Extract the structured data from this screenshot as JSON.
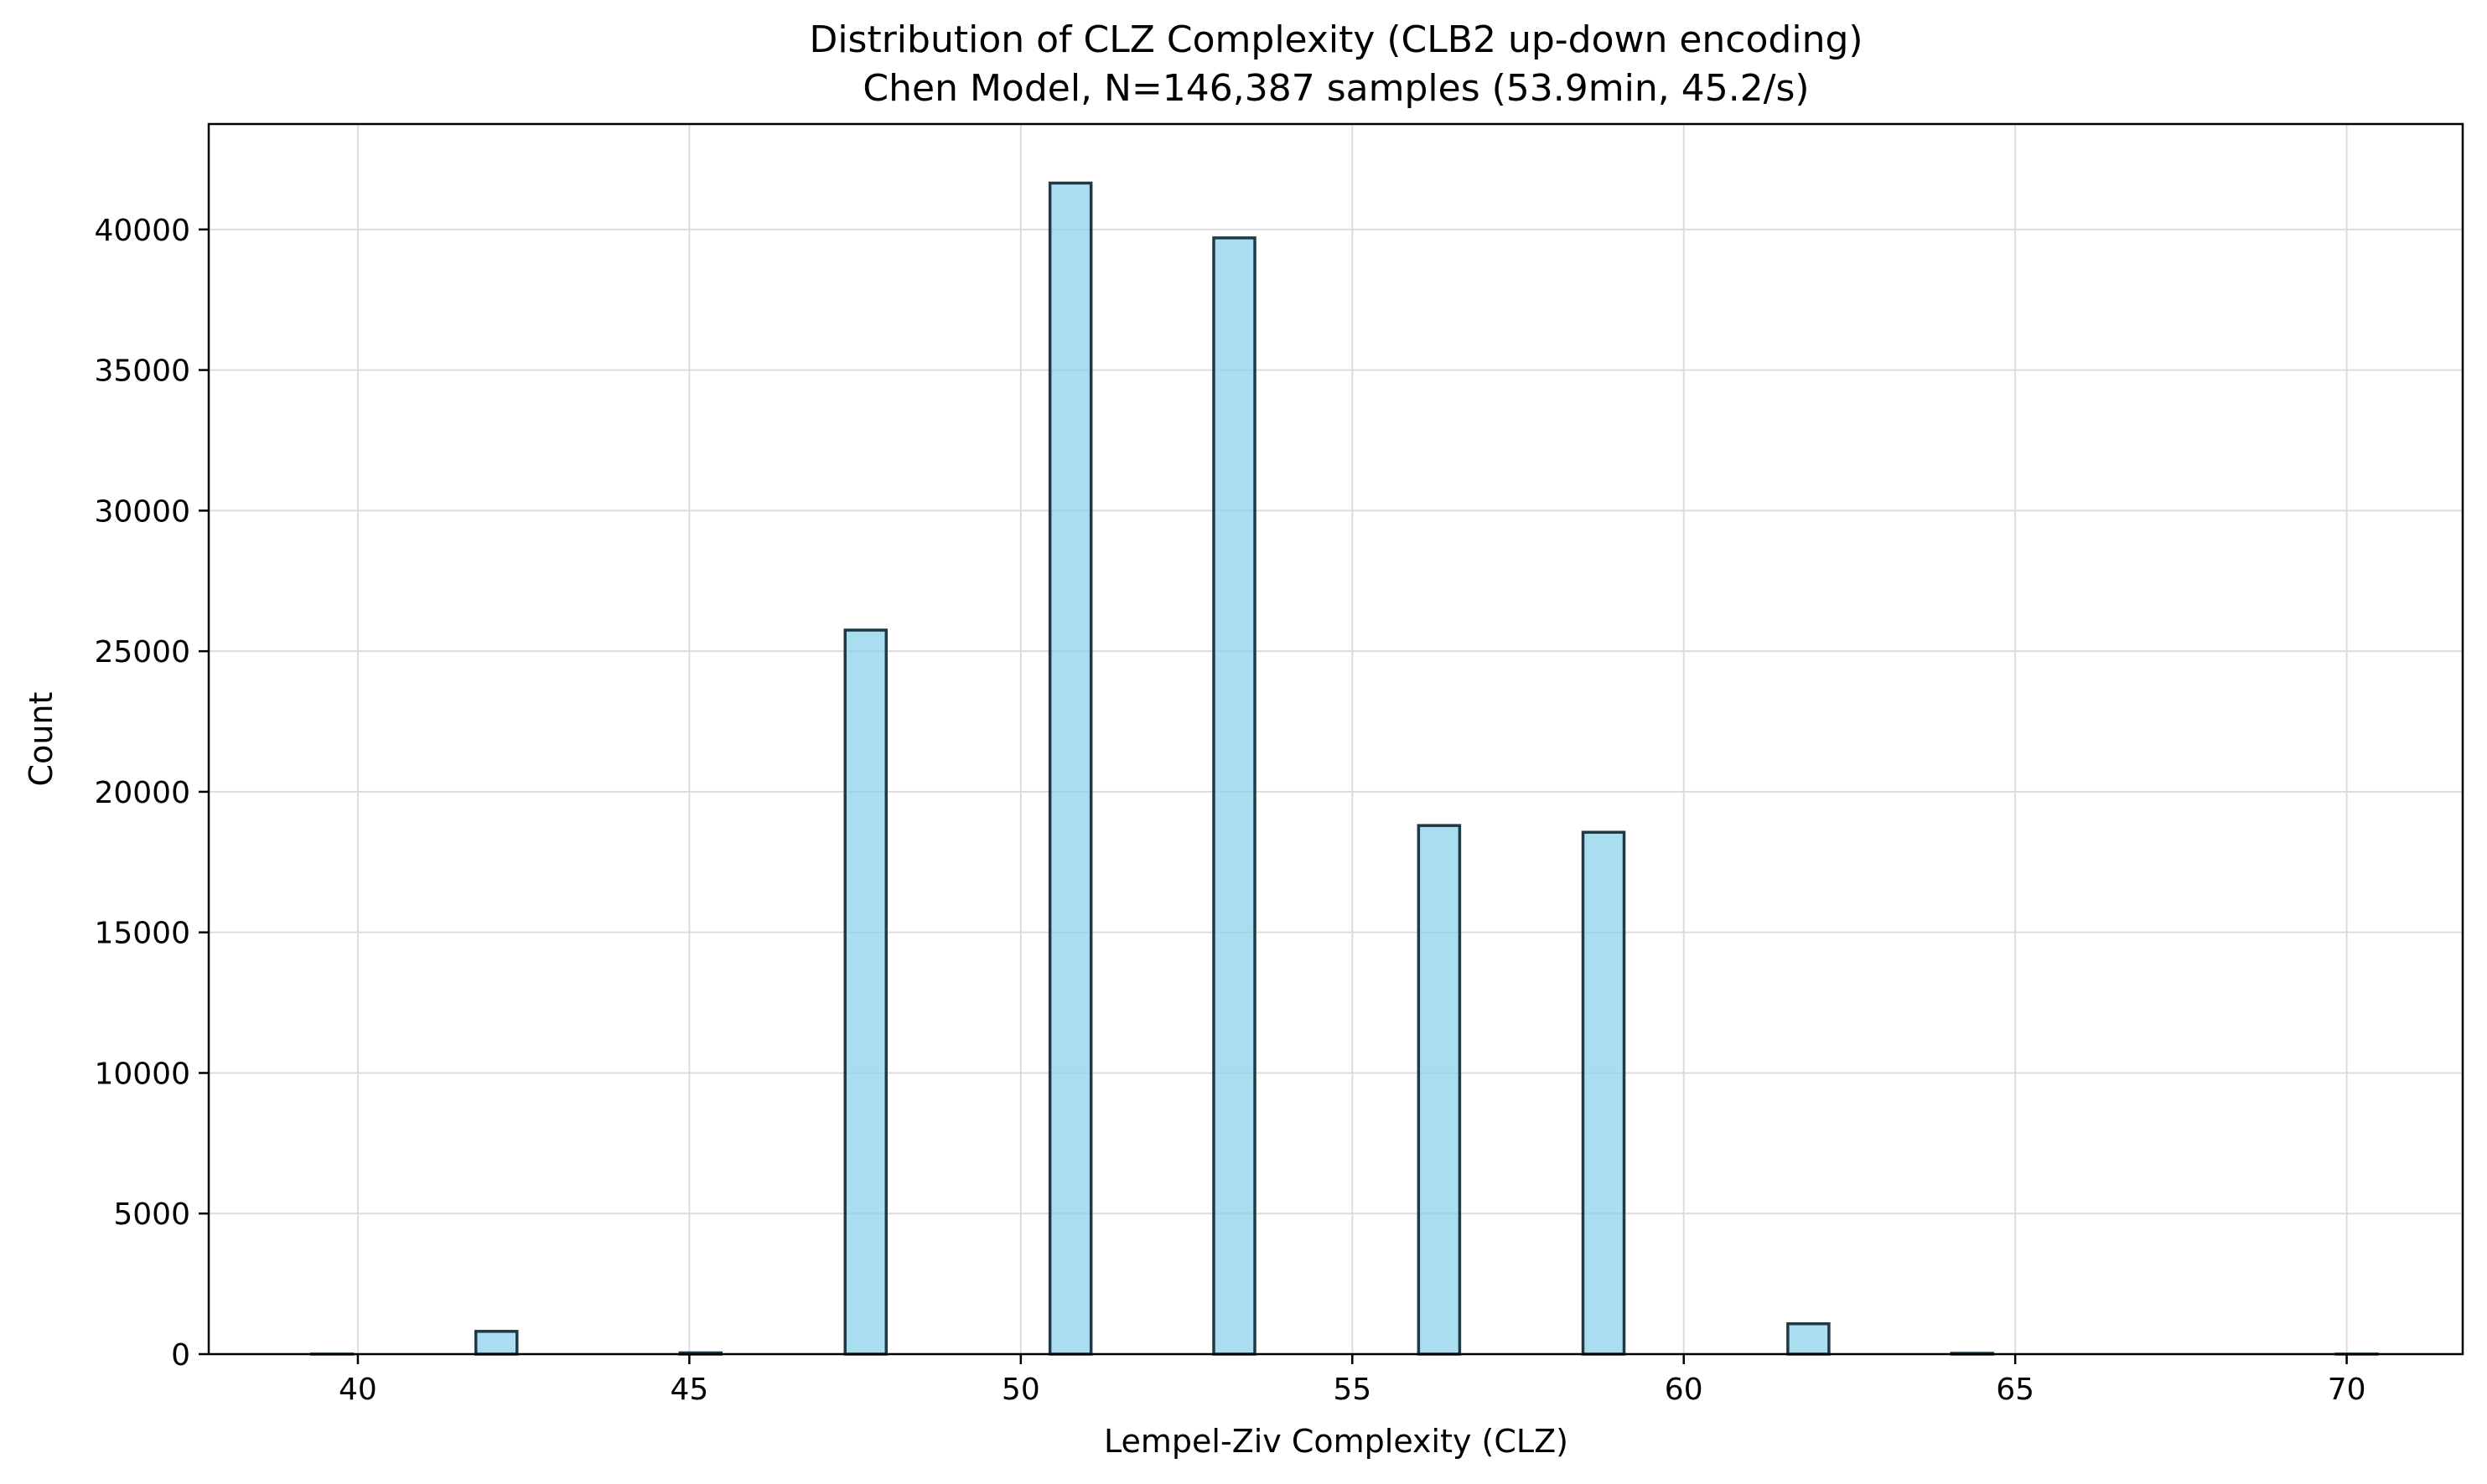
{
  "chart_data": {
    "type": "bar",
    "title_line1": "Distribution of CLZ Complexity (CLB2 up-down encoding)",
    "title_line2": "Chen Model, N=146,387 samples (53.9min, 45.2/s)",
    "xlabel": "Lempel-Ziv Complexity (CLZ)",
    "ylabel": "Count",
    "xlim": [
      37.75,
      71.75
    ],
    "ylim": [
      0,
      43750
    ],
    "x_ticks": [
      40,
      45,
      50,
      55,
      60,
      65,
      70
    ],
    "y_ticks": [
      0,
      5000,
      10000,
      15000,
      20000,
      25000,
      30000,
      35000,
      40000
    ],
    "bin_width": 0.62,
    "bins": [
      {
        "x0": 39.3,
        "x1": 39.92,
        "count": 2
      },
      {
        "x0": 41.78,
        "x1": 42.4,
        "count": 810
      },
      {
        "x0": 44.86,
        "x1": 45.48,
        "count": 45
      },
      {
        "x0": 47.35,
        "x1": 47.97,
        "count": 25750
      },
      {
        "x0": 50.44,
        "x1": 51.06,
        "count": 41650
      },
      {
        "x0": 52.91,
        "x1": 53.53,
        "count": 39700
      },
      {
        "x0": 56.0,
        "x1": 56.62,
        "count": 18800
      },
      {
        "x0": 58.48,
        "x1": 59.1,
        "count": 18560
      },
      {
        "x0": 61.57,
        "x1": 62.19,
        "count": 1080
      },
      {
        "x0": 64.04,
        "x1": 64.66,
        "count": 30
      },
      {
        "x0": 69.84,
        "x1": 70.46,
        "count": 2
      }
    ],
    "grid": true,
    "colors": {
      "bar_fill": "#87ceeb",
      "bar_edge": "#1f3a45",
      "grid": "#dcdcdc",
      "axis": "#000000"
    }
  }
}
